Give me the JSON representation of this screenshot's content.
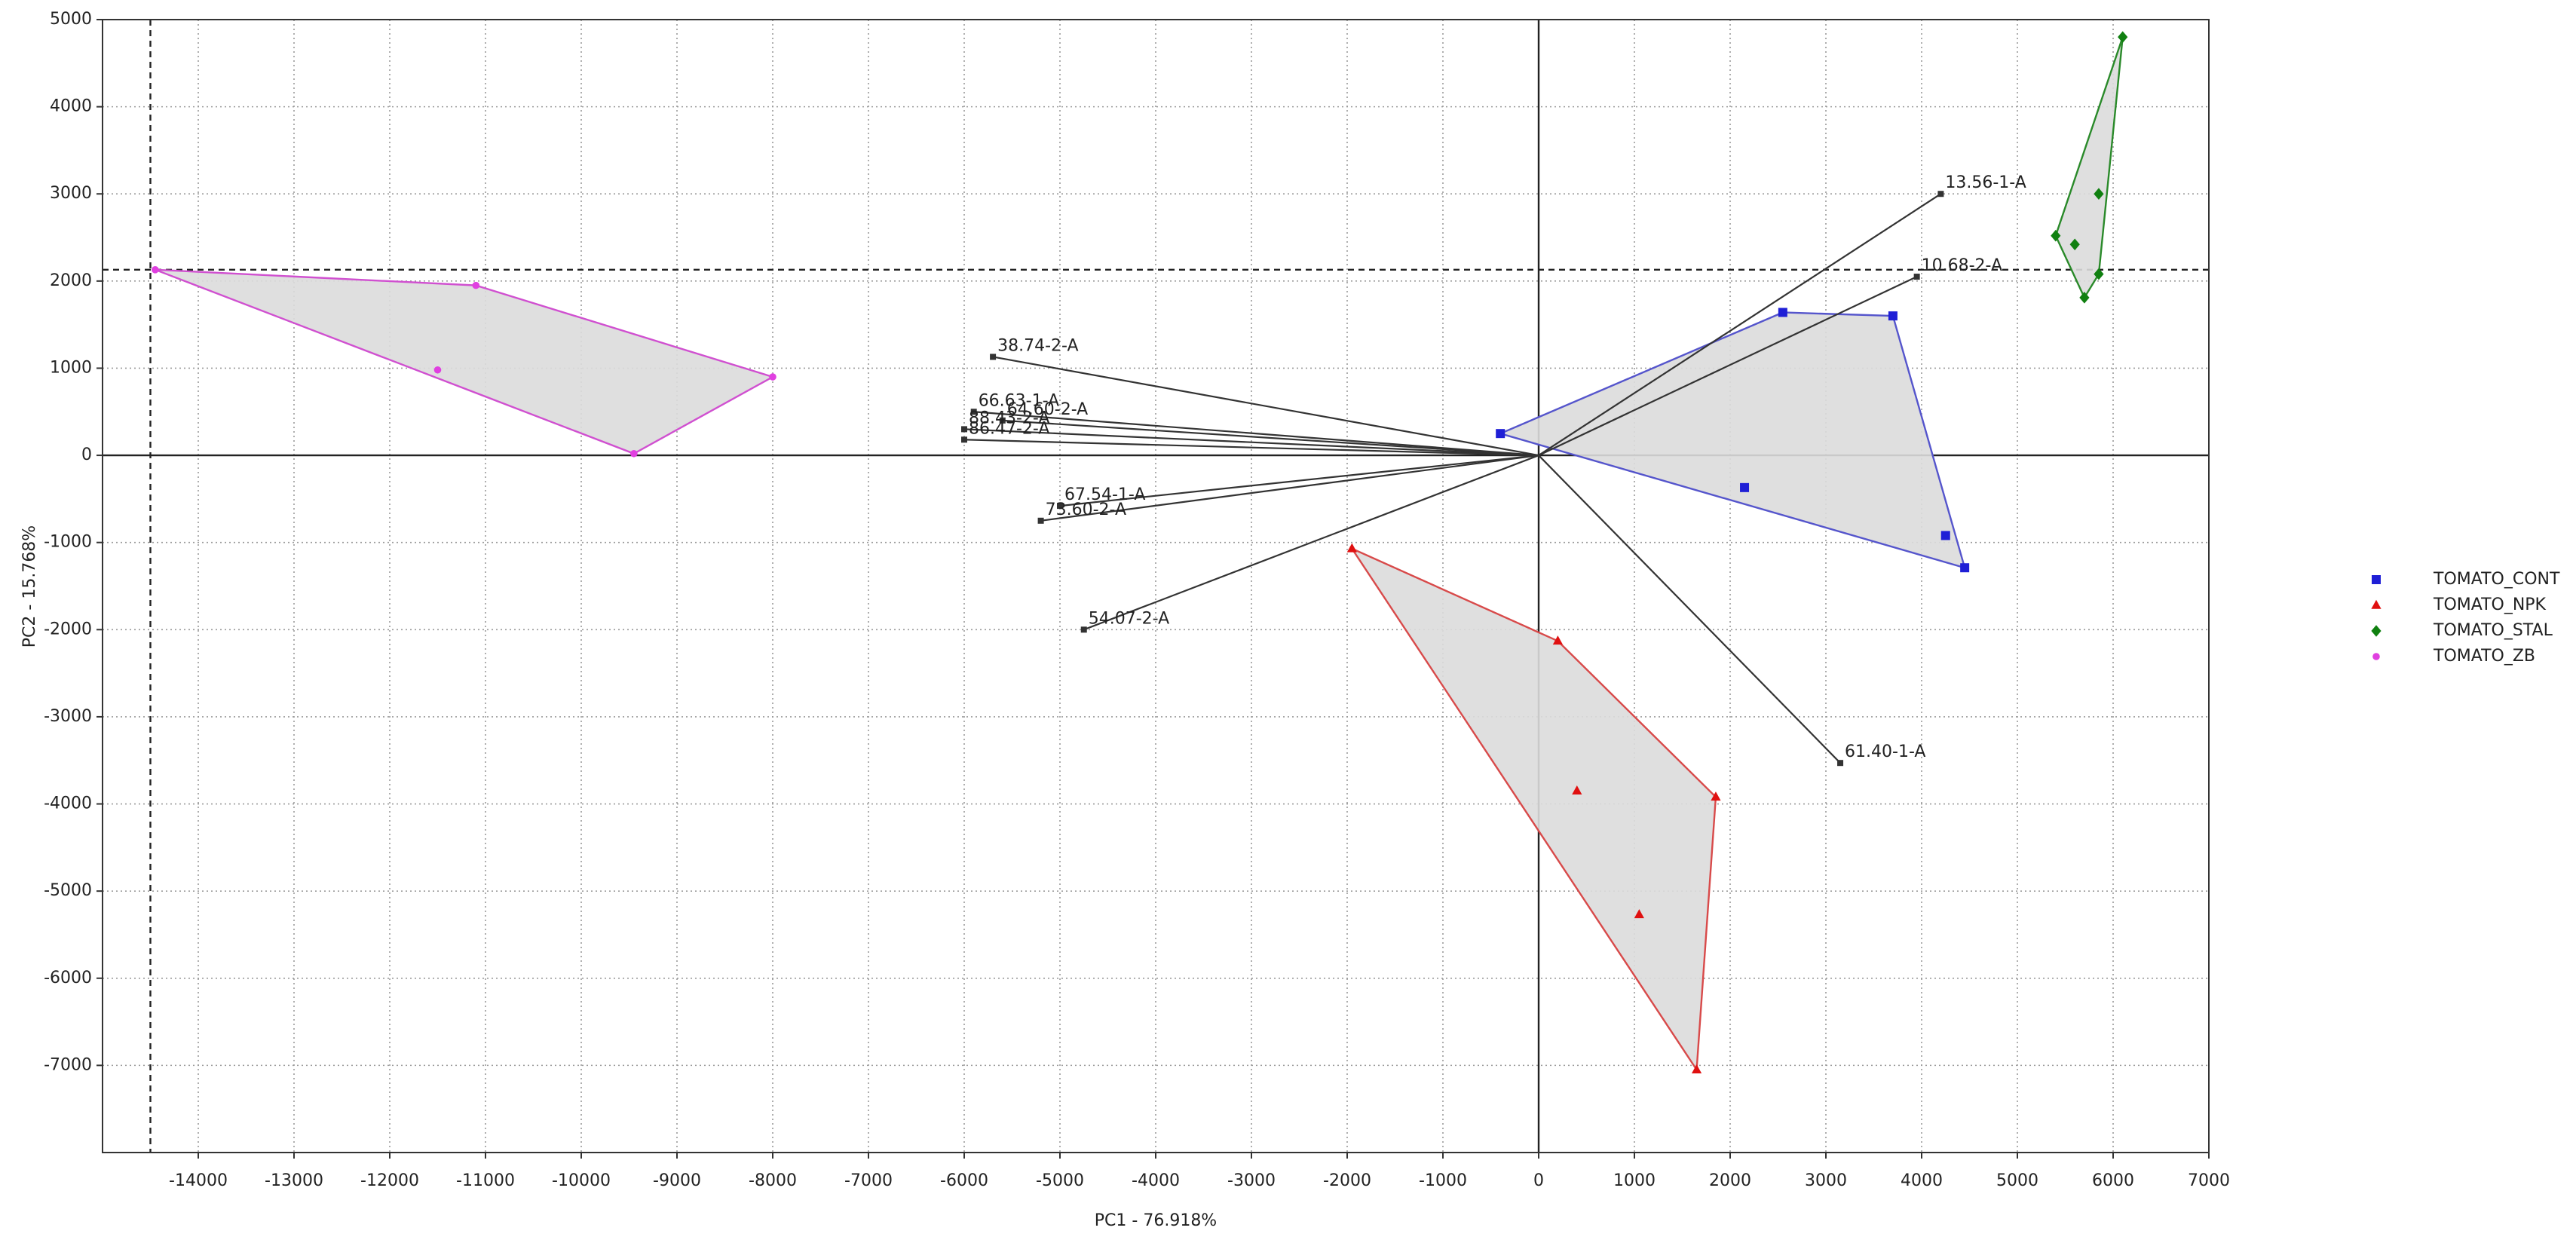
{
  "chart_data": {
    "type": "scatter",
    "xlabel": "PC1 - 76.918%",
    "ylabel": "PC2 - 15.768%",
    "xlim": [
      -15000,
      7000
    ],
    "ylim": [
      -8000,
      5000
    ],
    "xticks": [
      -14000,
      -13000,
      -12000,
      -11000,
      -10000,
      -9000,
      -8000,
      -7000,
      -6000,
      -5000,
      -4000,
      -3000,
      -2000,
      -1000,
      0,
      1000,
      2000,
      3000,
      4000,
      5000,
      6000,
      7000
    ],
    "yticks": [
      -7000,
      -6000,
      -5000,
      -4000,
      -3000,
      -2000,
      -1000,
      0,
      1000,
      2000,
      3000,
      4000,
      5000
    ],
    "grid": true,
    "crosshair": {
      "x": -14500,
      "y": 2130
    },
    "series": [
      {
        "name": "TOMATO_CONT",
        "color": "#1f1fd6",
        "marker": "square",
        "hull_color": "#5555cc",
        "x": [
          -400,
          2550,
          3700,
          2150,
          4250,
          4450
        ],
        "y": [
          250,
          1640,
          1600,
          -370,
          -920,
          -1290
        ]
      },
      {
        "name": "TOMATO_NPK",
        "color": "#e01010",
        "marker": "triangle",
        "hull_color": "#d84a4a",
        "x": [
          -1950,
          200,
          1850,
          1650,
          400,
          1050
        ],
        "y": [
          -1070,
          -2130,
          -3920,
          -7050,
          -3850,
          -5270
        ]
      },
      {
        "name": "TOMATO_STAL",
        "color": "#108010",
        "marker": "diamond",
        "hull_color": "#2a8a2a",
        "x": [
          6100,
          5400,
          5600,
          5850,
          5850,
          5700
        ],
        "y": [
          4800,
          2520,
          2420,
          3000,
          2080,
          1810
        ]
      },
      {
        "name": "TOMATO_ZB",
        "color": "#e040e0",
        "marker": "circle",
        "hull_color": "#d050d0",
        "x": [
          -14450,
          -11100,
          -8000,
          -9450,
          -11500
        ],
        "y": [
          2130,
          1950,
          900,
          20,
          980
        ]
      }
    ],
    "loadings": [
      {
        "label": "13.56-1-A",
        "x": 4200,
        "y": 3000
      },
      {
        "label": "10.68-2-A",
        "x": 3950,
        "y": 2050
      },
      {
        "label": "38.74-2-A",
        "x": -5700,
        "y": 1130
      },
      {
        "label": "66.63-1-A",
        "x": -5900,
        "y": 500
      },
      {
        "label": "64.60-2-A",
        "x": -5600,
        "y": 400
      },
      {
        "label": "88.43-2-A",
        "x": -6000,
        "y": 300
      },
      {
        "label": "86.47-2-A",
        "x": -6000,
        "y": 180
      },
      {
        "label": "67.54-1-A",
        "x": -5000,
        "y": -580
      },
      {
        "label": "73.60-2-A",
        "x": -5200,
        "y": -750
      },
      {
        "label": "54.07-2-A",
        "x": -4750,
        "y": -2000
      },
      {
        "label": "61.40-1-A",
        "x": 3150,
        "y": -3530
      }
    ],
    "legend": "right"
  }
}
